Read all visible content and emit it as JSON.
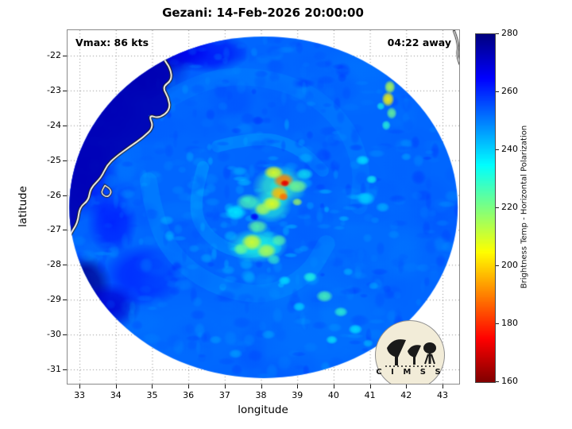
{
  "annotations": {
    "vmax": "Vmax: 86 kts",
    "countdown": "04:22 away"
  },
  "logo": {
    "letters": "C I M S S"
  },
  "chart_data": {
    "type": "heatmap",
    "title": "Gezani: 14-Feb-2026 20:00:00",
    "xlabel": "longitude",
    "ylabel": "latitude",
    "xlim": [
      32.67,
      43.46
    ],
    "ylim": [
      -31.41,
      -21.27
    ],
    "xticks": [
      33,
      34,
      35,
      36,
      37,
      38,
      39,
      40,
      41,
      42,
      43
    ],
    "yticks": [
      -22,
      -23,
      -24,
      -25,
      -26,
      -27,
      -28,
      -29,
      -30,
      -31
    ],
    "grid": true,
    "annotations": [
      {
        "text": "Vmax: 86 kts",
        "position": "top-left"
      },
      {
        "text": "04:22 away",
        "position": "top-right"
      }
    ],
    "colorbar": {
      "label": "Brightness Temp - Horizontal Polarization",
      "min": 160,
      "max": 280,
      "ticks": [
        160,
        180,
        200,
        220,
        240,
        260,
        280
      ],
      "colormap": "jet_reversed"
    },
    "swath": {
      "center": [
        38.07,
        -26.35
      ],
      "radius_lon": 5.35,
      "radius_lat": 4.9,
      "base_temp": 253
    },
    "land_temp": 274,
    "coastline": {
      "mozambique": [
        [
          35.55,
          -21.2
        ],
        [
          35.45,
          -21.75
        ],
        [
          35.28,
          -22.05
        ],
        [
          35.5,
          -22.35
        ],
        [
          35.55,
          -22.7
        ],
        [
          35.28,
          -22.9
        ],
        [
          35.45,
          -23.2
        ],
        [
          35.5,
          -23.55
        ],
        [
          35.2,
          -23.8
        ],
        [
          34.9,
          -23.7
        ],
        [
          35.05,
          -24.05
        ],
        [
          34.75,
          -24.35
        ],
        [
          34.4,
          -24.6
        ],
        [
          34.0,
          -24.9
        ],
        [
          33.75,
          -25.15
        ],
        [
          33.6,
          -25.5
        ],
        [
          33.3,
          -25.8
        ],
        [
          33.25,
          -26.15
        ],
        [
          33.0,
          -26.35
        ],
        [
          32.95,
          -26.8
        ],
        [
          32.72,
          -27.15
        ],
        [
          32.68,
          -27.6
        ],
        [
          32.55,
          -28.1
        ]
      ],
      "land_close": [
        [
          31.9,
          -28.3
        ],
        [
          31.9,
          -21.0
        ]
      ],
      "island_loop": [
        [
          33.7,
          -25.72
        ],
        [
          33.92,
          -25.85
        ],
        [
          33.78,
          -26.08
        ],
        [
          33.58,
          -25.95
        ],
        [
          33.7,
          -25.72
        ]
      ],
      "madagascar": [
        [
          43.32,
          -21.3
        ],
        [
          43.45,
          -21.65
        ],
        [
          43.4,
          -22.0
        ],
        [
          43.52,
          -22.35
        ],
        [
          43.62,
          -22.75
        ],
        [
          43.58,
          -23.15
        ],
        [
          43.7,
          -23.5
        ]
      ]
    },
    "spiral_bands": [
      {
        "temp": 249,
        "width_deg": 0.5,
        "alpha": 0.4,
        "points": [
          [
            35.2,
            -23.4
          ],
          [
            36.3,
            -22.7
          ],
          [
            37.8,
            -22.55
          ],
          [
            39.3,
            -23.0
          ],
          [
            40.35,
            -24.0
          ],
          [
            40.8,
            -25.2
          ],
          [
            40.7,
            -26.3
          ]
        ]
      },
      {
        "temp": 248,
        "width_deg": 0.5,
        "alpha": 0.45,
        "points": [
          [
            34.9,
            -25.6
          ],
          [
            35.1,
            -26.9
          ],
          [
            35.8,
            -28.0
          ],
          [
            36.9,
            -28.7
          ],
          [
            38.2,
            -28.9
          ],
          [
            39.3,
            -28.3
          ],
          [
            39.8,
            -27.4
          ]
        ]
      },
      {
        "temp": 245,
        "width_deg": 0.35,
        "alpha": 0.5,
        "points": [
          [
            36.4,
            -25.2
          ],
          [
            36.1,
            -26.3
          ],
          [
            36.5,
            -27.2
          ],
          [
            37.4,
            -27.7
          ],
          [
            38.4,
            -27.5
          ]
        ]
      },
      {
        "temp": 246,
        "width_deg": 0.35,
        "alpha": 0.45,
        "points": [
          [
            36.8,
            -24.6
          ],
          [
            37.9,
            -24.3
          ],
          [
            39.0,
            -24.6
          ],
          [
            39.7,
            -25.3
          ]
        ]
      }
    ],
    "features": {
      "base": [
        [
          34.4,
          -22.3,
          1.7,
          1.1,
          273,
          0.95
        ],
        [
          35.6,
          -21.8,
          1.0,
          0.7,
          271,
          0.9
        ],
        [
          33.6,
          -23.6,
          1.2,
          1.0,
          269,
          0.9
        ],
        [
          33.2,
          -25.3,
          0.9,
          1.4,
          266,
          0.85
        ],
        [
          33.1,
          -28.6,
          0.8,
          0.9,
          278,
          1
        ],
        [
          33.8,
          -29.2,
          0.9,
          0.7,
          270,
          0.9
        ],
        [
          34.8,
          -28.3,
          1.2,
          0.9,
          263,
          0.7
        ],
        [
          36.5,
          -21.9,
          1.2,
          0.6,
          266,
          0.8
        ],
        [
          33.9,
          -26.8,
          0.7,
          0.9,
          264,
          0.8
        ],
        [
          39.5,
          -29.5,
          2.5,
          1.8,
          250,
          0.4
        ],
        [
          41.0,
          -27.0,
          1.8,
          1.5,
          251,
          0.35
        ],
        [
          36.0,
          -30.0,
          2.0,
          1.2,
          251,
          0.35
        ],
        [
          40.5,
          -22.8,
          1.5,
          1.0,
          251,
          0.35
        ]
      ],
      "bright": [
        [
          38.5,
          -25.75,
          0.75,
          0.6,
          228,
          0.75
        ],
        [
          38.25,
          -26.35,
          0.6,
          0.45,
          230,
          0.7
        ],
        [
          37.9,
          -27.45,
          0.85,
          0.5,
          231,
          0.8
        ],
        [
          38.62,
          -25.58,
          0.3,
          0.22,
          190,
          0.95
        ],
        [
          38.66,
          -25.66,
          0.13,
          0.1,
          172,
          1
        ],
        [
          38.5,
          -25.95,
          0.26,
          0.22,
          197,
          0.95
        ],
        [
          38.62,
          -26.05,
          0.14,
          0.12,
          188,
          0.95
        ],
        [
          38.35,
          -25.35,
          0.28,
          0.2,
          208,
          0.9
        ],
        [
          38.3,
          -26.25,
          0.28,
          0.22,
          207,
          0.9
        ],
        [
          38.05,
          -26.4,
          0.25,
          0.2,
          214,
          0.85
        ],
        [
          37.65,
          -26.2,
          0.35,
          0.25,
          226,
          0.8
        ],
        [
          37.3,
          -26.5,
          0.3,
          0.22,
          236,
          0.8
        ],
        [
          39.0,
          -25.75,
          0.3,
          0.2,
          220,
          0.8
        ],
        [
          39.2,
          -25.4,
          0.25,
          0.18,
          233,
          0.7
        ],
        [
          39.0,
          -26.2,
          0.15,
          0.12,
          215,
          0.8
        ],
        [
          37.9,
          -26.9,
          0.3,
          0.2,
          223,
          0.8
        ],
        [
          37.75,
          -27.35,
          0.3,
          0.25,
          209,
          0.9
        ],
        [
          38.15,
          -27.6,
          0.28,
          0.22,
          213,
          0.85
        ],
        [
          37.45,
          -27.55,
          0.22,
          0.18,
          221,
          0.8
        ],
        [
          38.5,
          -27.3,
          0.22,
          0.18,
          224,
          0.75
        ],
        [
          38.35,
          -27.85,
          0.2,
          0.16,
          228,
          0.7
        ],
        [
          41.55,
          -22.9,
          0.16,
          0.2,
          214,
          0.9
        ],
        [
          41.5,
          -23.25,
          0.18,
          0.22,
          204,
          0.9
        ],
        [
          41.6,
          -23.65,
          0.15,
          0.18,
          222,
          0.85
        ],
        [
          41.45,
          -24.0,
          0.13,
          0.15,
          230,
          0.8
        ],
        [
          41.3,
          -23.45,
          0.12,
          0.12,
          232,
          0.7
        ],
        [
          40.8,
          -25.0,
          0.2,
          0.15,
          237,
          0.8
        ],
        [
          41.05,
          -25.55,
          0.16,
          0.13,
          233,
          0.8
        ],
        [
          40.9,
          -26.1,
          0.25,
          0.2,
          240,
          0.8
        ],
        [
          41.35,
          -26.35,
          0.2,
          0.15,
          243,
          0.7
        ],
        [
          42.0,
          -24.9,
          0.15,
          0.12,
          245,
          0.6
        ],
        [
          39.35,
          -28.35,
          0.2,
          0.15,
          231,
          0.8
        ],
        [
          39.75,
          -28.9,
          0.24,
          0.18,
          226,
          0.85
        ],
        [
          40.2,
          -29.35,
          0.2,
          0.15,
          229,
          0.8
        ],
        [
          40.6,
          -29.85,
          0.2,
          0.15,
          236,
          0.75
        ],
        [
          39.05,
          -29.2,
          0.18,
          0.14,
          238,
          0.7
        ],
        [
          39.95,
          -30.15,
          0.17,
          0.13,
          234,
          0.7
        ],
        [
          40.95,
          -30.25,
          0.15,
          0.12,
          241,
          0.6
        ],
        [
          38.65,
          -28.45,
          0.18,
          0.14,
          236,
          0.7
        ],
        [
          41.1,
          -28.6,
          0.15,
          0.12,
          244,
          0.6
        ],
        [
          40.4,
          -28.2,
          0.15,
          0.12,
          242,
          0.6
        ],
        [
          37.3,
          -30.55,
          0.2,
          0.14,
          244,
          0.6
        ],
        [
          36.75,
          -30.15,
          0.18,
          0.13,
          246,
          0.6
        ],
        [
          38.2,
          -30.0,
          0.2,
          0.14,
          243,
          0.5
        ],
        [
          37.82,
          -26.62,
          0.13,
          0.11,
          266,
          0.9
        ]
      ]
    },
    "noise": {
      "seed": 42,
      "small": 600,
      "medium": 120,
      "speckle": 90
    }
  }
}
